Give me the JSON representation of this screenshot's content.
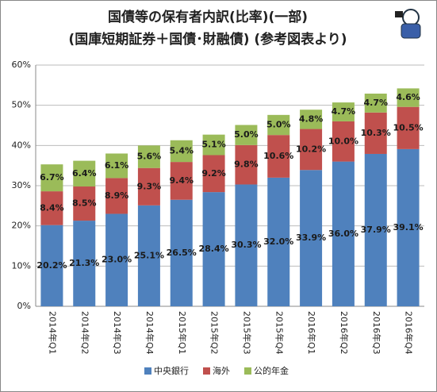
{
  "chart_data": {
    "type": "stacked-bar",
    "title": [
      "国債等の保有者内訳(比率)(一部)",
      "(国庫短期証券＋国債･財融債) (参考図表より)"
    ],
    "categories": [
      "2014年Q1",
      "2014年Q2",
      "2014年Q3",
      "2014年Q4",
      "2015年Q1",
      "2015年Q2",
      "2015年Q3",
      "2015年Q4",
      "2016年Q1",
      "2016年Q2",
      "2016年Q3",
      "2016年Q4"
    ],
    "series": [
      {
        "name": "中央銀行",
        "color": "#4f81bd",
        "values": [
          20.2,
          21.3,
          23.0,
          25.1,
          26.5,
          28.4,
          30.3,
          32.0,
          33.9,
          36.0,
          37.9,
          39.1
        ],
        "value_labels": [
          "20.2%",
          "21.3%",
          "23.0%",
          "25.1%",
          "26.5%",
          "28.4%",
          "30.3%",
          "32.0%",
          "33.9%",
          "36.0%",
          "37.9%",
          "39.1%"
        ]
      },
      {
        "name": "海外",
        "color": "#c0504d",
        "values": [
          8.4,
          8.5,
          8.9,
          9.3,
          9.4,
          9.2,
          9.8,
          10.6,
          10.2,
          10.0,
          10.3,
          10.5
        ],
        "value_labels": [
          "8.4%",
          "8.5%",
          "8.9%",
          "9.3%",
          "9.4%",
          "9.2%",
          "9.8%",
          "10.6%",
          "10.2%",
          "10.0%",
          "10.3%",
          "10.5%"
        ]
      },
      {
        "name": "公的年金",
        "color": "#9bbb59",
        "values": [
          6.7,
          6.4,
          6.1,
          5.6,
          5.4,
          5.1,
          5.0,
          5.0,
          4.8,
          4.7,
          4.7,
          4.6
        ],
        "value_labels": [
          "6.7%",
          "6.4%",
          "6.1%",
          "5.6%",
          "5.4%",
          "5.1%",
          "5.0%",
          "5.0%",
          "4.8%",
          "4.7%",
          "4.7%",
          "4.6%"
        ]
      }
    ],
    "ylim": [
      0,
      60
    ],
    "yticks": [
      {
        "value": 0,
        "label": "0%"
      },
      {
        "value": 10,
        "label": "10%"
      },
      {
        "value": 20,
        "label": "20%"
      },
      {
        "value": 30,
        "label": "30%"
      },
      {
        "value": 40,
        "label": "40%"
      },
      {
        "value": 50,
        "label": "50%"
      },
      {
        "value": 60,
        "label": "60%"
      }
    ],
    "grid": true,
    "legend": "bottom"
  }
}
